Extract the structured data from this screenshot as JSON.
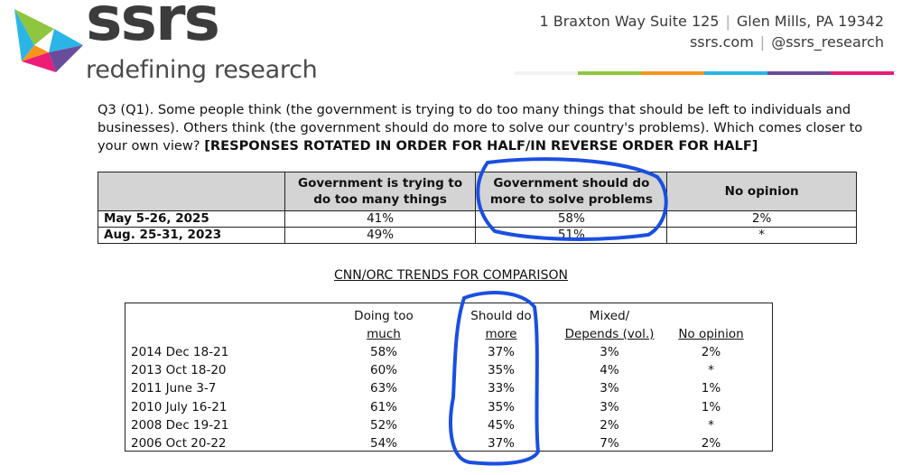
{
  "header": {
    "logo_word": "ssrs",
    "logo_tagline": "redefining research",
    "address_line": "1 Braxton Way Suite 125",
    "city_line": "Glen Mills, PA 19342",
    "website": "ssrs.com",
    "social": "@ssrs_research",
    "bar_colors": [
      "#f2f2f2",
      "#8fc63f",
      "#f7941d",
      "#2bb5e7",
      "#6a4c9c",
      "#ec1c78"
    ]
  },
  "question": {
    "text": "Q3 (Q1). Some people think (the government is trying to do too many things that should be left to individuals and businesses). Others think (the government should do more to solve our country's problems). Which comes closer to your own view?",
    "instruction": "[RESPONSES ROTATED IN ORDER FOR HALF/IN REVERSE ORDER FOR HALF]"
  },
  "main_table": {
    "headers": [
      "",
      "Government is trying to do too many things",
      "Government should do more to solve problems",
      "No opinion"
    ],
    "rows": [
      {
        "label": "May 5-26, 2025",
        "too_much": "41%",
        "do_more": "58%",
        "no_opinion": "2%"
      },
      {
        "label": "Aug. 25-31, 2023",
        "too_much": "49%",
        "do_more": "51%",
        "no_opinion": "*"
      }
    ]
  },
  "trends": {
    "title": "CNN/ORC TRENDS FOR COMPARISON",
    "headers": {
      "col1_line1": "Doing too",
      "col1_line2": "much",
      "col2_line1": "Should do",
      "col2_line2": "more",
      "col3_line1": "Mixed/",
      "col3_line2": "Depends (vol.)",
      "col4_line2": "No opinion"
    },
    "rows": [
      {
        "label": "2014 Dec 18-21",
        "too_much": "58%",
        "do_more": "37%",
        "mixed": "3%",
        "no_opinion": "2%"
      },
      {
        "label": "2013 Oct 18-20",
        "too_much": "60%",
        "do_more": "35%",
        "mixed": "4%",
        "no_opinion": "*"
      },
      {
        "label": "2011 June 3-7",
        "too_much": "63%",
        "do_more": "33%",
        "mixed": "3%",
        "no_opinion": "1%"
      },
      {
        "label": "2010 July 16-21",
        "too_much": "61%",
        "do_more": "35%",
        "mixed": "3%",
        "no_opinion": "1%"
      },
      {
        "label": "2008 Dec 19-21",
        "too_much": "52%",
        "do_more": "45%",
        "mixed": "2%",
        "no_opinion": "*"
      },
      {
        "label": "2006 Oct 20-22",
        "too_much": "54%",
        "do_more": "37%",
        "mixed": "7%",
        "no_opinion": "2%"
      }
    ]
  },
  "annotations": {
    "ink_color": "#1a4fe0"
  }
}
